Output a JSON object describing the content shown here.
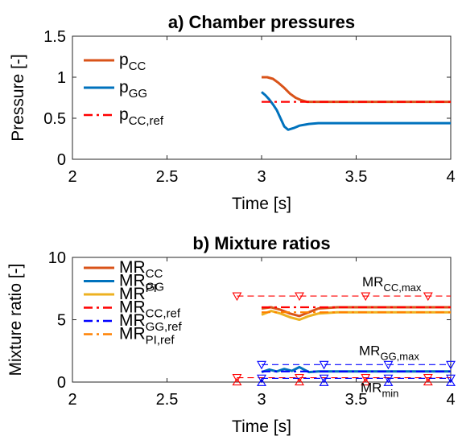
{
  "chart_data": [
    {
      "type": "line",
      "title": "a) Chamber pressures",
      "xlabel": "Time [s]",
      "ylabel": "Pressure [-]",
      "xlim": [
        2,
        4
      ],
      "ylim": [
        0,
        1.5
      ],
      "xticks": [
        "2",
        "2.5",
        "3",
        "3.5",
        "4"
      ],
      "yticks": [
        "0",
        "0.5",
        "1",
        "1.5"
      ],
      "grid": false,
      "legend": "top-left",
      "series": [
        {
          "name": "p",
          "sub": "CC",
          "sup": "",
          "color": "#D95319",
          "style": "solid",
          "x": [
            3.0,
            3.03,
            3.06,
            3.09,
            3.12,
            3.15,
            3.18,
            3.21,
            3.24,
            3.27,
            3.3,
            3.4,
            3.6,
            3.8,
            4.0
          ],
          "y": [
            1.0,
            1.0,
            0.98,
            0.93,
            0.87,
            0.8,
            0.75,
            0.72,
            0.7,
            0.7,
            0.7,
            0.7,
            0.7,
            0.7,
            0.7
          ]
        },
        {
          "name": "p",
          "sub": "GG",
          "sup": "",
          "color": "#0072BD",
          "style": "solid",
          "x": [
            3.0,
            3.02,
            3.04,
            3.06,
            3.08,
            3.1,
            3.12,
            3.14,
            3.17,
            3.2,
            3.25,
            3.3,
            3.4,
            3.6,
            3.8,
            4.0
          ],
          "y": [
            0.82,
            0.78,
            0.73,
            0.67,
            0.6,
            0.5,
            0.4,
            0.36,
            0.38,
            0.41,
            0.43,
            0.44,
            0.44,
            0.44,
            0.44,
            0.44
          ]
        },
        {
          "name": "p",
          "sub": "CC,ref",
          "sup": "",
          "color": "#FF0000",
          "style": "dashdot",
          "x": [
            3.0,
            4.0
          ],
          "y": [
            0.7,
            0.7
          ]
        }
      ]
    },
    {
      "type": "line",
      "title": "b) Mixture ratios",
      "xlabel": "Time [s]",
      "ylabel": "Mixture ratio [-]",
      "xlim": [
        2,
        4
      ],
      "ylim": [
        0,
        10
      ],
      "xticks": [
        "2",
        "2.5",
        "3",
        "3.5",
        "4"
      ],
      "yticks": [
        "0",
        "5",
        "10"
      ],
      "grid": false,
      "legend": "top-left",
      "series": [
        {
          "name": "MR",
          "sub": "CC",
          "sup": "",
          "color": "#D95319",
          "style": "solid",
          "x": [
            3.0,
            3.05,
            3.1,
            3.15,
            3.2,
            3.25,
            3.3,
            3.4,
            3.6,
            3.8,
            4.0
          ],
          "y": [
            5.9,
            6.0,
            5.8,
            5.5,
            5.3,
            5.6,
            5.9,
            6.0,
            6.0,
            6.0,
            6.0
          ]
        },
        {
          "name": "MR",
          "sub": "GG",
          "sup": "",
          "color": "#0072BD",
          "style": "solid",
          "x": [
            3.0,
            3.04,
            3.08,
            3.12,
            3.16,
            3.2,
            3.25,
            3.3,
            3.4,
            3.6,
            3.8,
            4.0
          ],
          "y": [
            0.8,
            1.0,
            0.85,
            1.05,
            0.9,
            1.2,
            0.8,
            0.85,
            0.85,
            0.85,
            0.85,
            0.85
          ]
        },
        {
          "name": "MR",
          "sub": "",
          "sup": "PI",
          "color": "#EDB120",
          "style": "solid",
          "x": [
            3.0,
            3.05,
            3.1,
            3.15,
            3.2,
            3.25,
            3.3,
            3.4,
            3.6,
            3.8,
            4.0
          ],
          "y": [
            5.4,
            5.7,
            5.5,
            5.2,
            5.0,
            5.3,
            5.5,
            5.6,
            5.6,
            5.6,
            5.6
          ]
        },
        {
          "name": "MR",
          "sub": "CC,ref",
          "sup": "",
          "color": "#FF0000",
          "style": "dashdot",
          "x": [
            3.0,
            4.0
          ],
          "y": [
            6.0,
            6.0
          ]
        },
        {
          "name": "MR",
          "sub": "GG,ref",
          "sup": "",
          "color": "#0000FF",
          "style": "dashdot",
          "x": [
            3.0,
            4.0
          ],
          "y": [
            0.85,
            0.85
          ]
        },
        {
          "name": "MR",
          "sub": "PI,ref",
          "sup": "",
          "color": "#FF8000",
          "style": "dashdot",
          "x": [
            3.0,
            4.0
          ],
          "y": [
            5.6,
            5.6
          ]
        }
      ],
      "limits": [
        {
          "label": "MR",
          "sub": "CC,max",
          "color": "#FF0000",
          "y": 6.9,
          "x0": 2.87,
          "x1": 4.0,
          "markers": [
            2.87,
            3.2,
            3.55,
            3.88
          ]
        },
        {
          "label": "MR",
          "sub": "GG,max",
          "color": "#0000FF",
          "y": 1.4,
          "x0": 3.0,
          "x1": 4.0,
          "markers": [
            3.0,
            3.33,
            3.67,
            4.0
          ]
        },
        {
          "label": "MR",
          "sub": "min",
          "color": "#FF0000",
          "y": 0.35,
          "x0": 2.87,
          "x1": 4.0,
          "markers": [
            2.87,
            3.2,
            3.55,
            3.88
          ]
        },
        {
          "label": "",
          "sub": "",
          "color": "#0000FF",
          "y": 0.3,
          "x0": 3.0,
          "x1": 4.0,
          "markers": [
            3.0,
            3.33,
            3.67,
            4.0
          ]
        }
      ]
    }
  ]
}
